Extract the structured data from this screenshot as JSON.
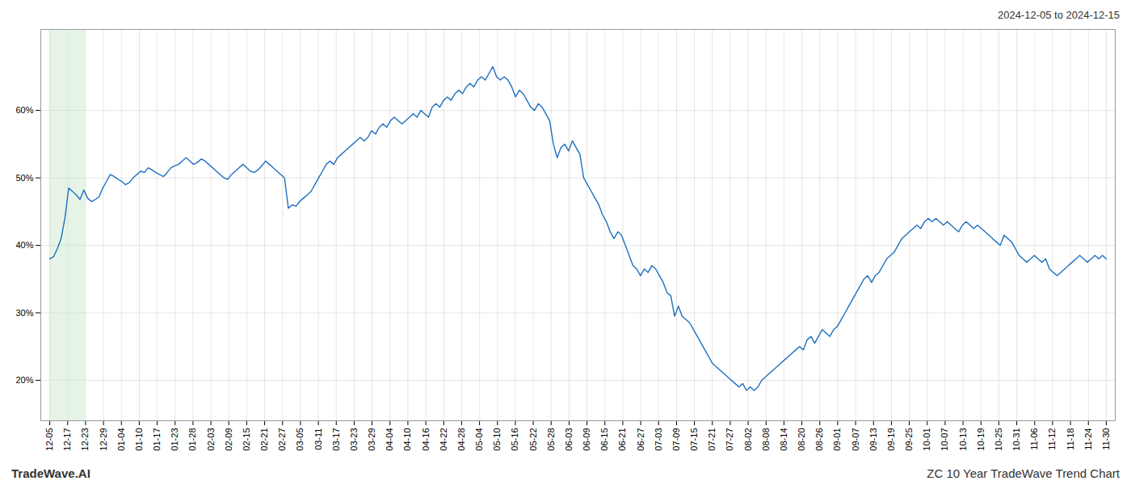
{
  "chart_data": {
    "type": "line",
    "title": "ZC 10 Year TradeWave Trend Chart",
    "subtitle": "2024-12-05 to 2024-12-15",
    "caption": "TradeWave.AI",
    "color": "#1f6fbf",
    "grid": true,
    "highlight": {
      "x": [
        0,
        2
      ],
      "color": "#c8e6c9"
    },
    "xlim": [
      -0.5,
      59.5
    ],
    "xticks": [
      {
        "value": 0,
        "label": "12-05"
      },
      {
        "value": 1,
        "label": "12-17"
      },
      {
        "value": 2,
        "label": "12-23"
      },
      {
        "value": 3,
        "label": "12-29"
      },
      {
        "value": 4,
        "label": "01-04"
      },
      {
        "value": 5,
        "label": "01-10"
      },
      {
        "value": 6,
        "label": "01-17"
      },
      {
        "value": 7,
        "label": "01-23"
      },
      {
        "value": 8,
        "label": "01-28"
      },
      {
        "value": 9,
        "label": "02-03"
      },
      {
        "value": 10,
        "label": "02-09"
      },
      {
        "value": 11,
        "label": "02-15"
      },
      {
        "value": 12,
        "label": "02-21"
      },
      {
        "value": 13,
        "label": "02-27"
      },
      {
        "value": 14,
        "label": "03-05"
      },
      {
        "value": 15,
        "label": "03-11"
      },
      {
        "value": 16,
        "label": "03-17"
      },
      {
        "value": 17,
        "label": "03-23"
      },
      {
        "value": 18,
        "label": "03-29"
      },
      {
        "value": 19,
        "label": "04-04"
      },
      {
        "value": 20,
        "label": "04-10"
      },
      {
        "value": 21,
        "label": "04-16"
      },
      {
        "value": 22,
        "label": "04-22"
      },
      {
        "value": 23,
        "label": "04-28"
      },
      {
        "value": 24,
        "label": "05-04"
      },
      {
        "value": 25,
        "label": "05-10"
      },
      {
        "value": 26,
        "label": "05-16"
      },
      {
        "value": 27,
        "label": "05-22"
      },
      {
        "value": 28,
        "label": "05-28"
      },
      {
        "value": 29,
        "label": "06-03"
      },
      {
        "value": 30,
        "label": "06-09"
      },
      {
        "value": 31,
        "label": "06-15"
      },
      {
        "value": 32,
        "label": "06-21"
      },
      {
        "value": 33,
        "label": "06-27"
      },
      {
        "value": 34,
        "label": "07-03"
      },
      {
        "value": 35,
        "label": "07-09"
      },
      {
        "value": 36,
        "label": "07-15"
      },
      {
        "value": 37,
        "label": "07-21"
      },
      {
        "value": 38,
        "label": "07-27"
      },
      {
        "value": 39,
        "label": "08-02"
      },
      {
        "value": 40,
        "label": "08-08"
      },
      {
        "value": 41,
        "label": "08-14"
      },
      {
        "value": 42,
        "label": "08-20"
      },
      {
        "value": 43,
        "label": "08-26"
      },
      {
        "value": 44,
        "label": "09-01"
      },
      {
        "value": 45,
        "label": "09-07"
      },
      {
        "value": 46,
        "label": "09-13"
      },
      {
        "value": 47,
        "label": "09-19"
      },
      {
        "value": 48,
        "label": "09-25"
      },
      {
        "value": 49,
        "label": "10-01"
      },
      {
        "value": 50,
        "label": "10-07"
      },
      {
        "value": 51,
        "label": "10-13"
      },
      {
        "value": 52,
        "label": "10-19"
      },
      {
        "value": 53,
        "label": "10-25"
      },
      {
        "value": 54,
        "label": "10-31"
      },
      {
        "value": 55,
        "label": "11-06"
      },
      {
        "value": 56,
        "label": "11-12"
      },
      {
        "value": 57,
        "label": "11-18"
      },
      {
        "value": 58,
        "label": "11-24"
      },
      {
        "value": 59,
        "label": "11-30"
      }
    ],
    "ylim": [
      14,
      72
    ],
    "yticks": [
      {
        "value": 20,
        "label": "20%"
      },
      {
        "value": 30,
        "label": "30%"
      },
      {
        "value": 40,
        "label": "40%"
      },
      {
        "value": 50,
        "label": "50%"
      },
      {
        "value": 60,
        "label": "60%"
      }
    ],
    "values": [
      38.0,
      38.3,
      39.5,
      41.0,
      44.0,
      48.5,
      48.0,
      47.5,
      46.8,
      48.2,
      47.0,
      46.5,
      46.8,
      47.2,
      48.5,
      49.5,
      50.5,
      50.2,
      49.8,
      49.5,
      49.0,
      49.3,
      50.0,
      50.5,
      51.0,
      50.8,
      51.5,
      51.2,
      50.8,
      50.5,
      50.2,
      50.8,
      51.5,
      51.8,
      52.0,
      52.5,
      53.0,
      52.5,
      52.0,
      52.3,
      52.8,
      52.5,
      52.0,
      51.5,
      51.0,
      50.5,
      50.0,
      49.8,
      50.5,
      51.0,
      51.5,
      52.0,
      51.5,
      51.0,
      50.8,
      51.2,
      51.8,
      52.5,
      52.0,
      51.5,
      51.0,
      50.5,
      50.0,
      45.5,
      46.0,
      45.8,
      46.5,
      47.0,
      47.5,
      48.0,
      49.0,
      50.0,
      51.0,
      52.0,
      52.5,
      52.0,
      53.0,
      53.5,
      54.0,
      54.5,
      55.0,
      55.5,
      56.0,
      55.5,
      56.0,
      57.0,
      56.5,
      57.5,
      58.0,
      57.5,
      58.5,
      59.0,
      58.5,
      58.0,
      58.5,
      59.0,
      59.5,
      59.0,
      60.0,
      59.5,
      59.0,
      60.5,
      61.0,
      60.5,
      61.5,
      62.0,
      61.5,
      62.5,
      63.0,
      62.5,
      63.5,
      64.0,
      63.5,
      64.5,
      65.0,
      64.5,
      65.5,
      66.5,
      65.0,
      64.5,
      65.0,
      64.5,
      63.5,
      62.0,
      63.0,
      62.5,
      61.5,
      60.5,
      60.0,
      61.0,
      60.5,
      59.5,
      58.5,
      55.0,
      53.0,
      54.5,
      55.0,
      54.0,
      55.5,
      54.5,
      53.5,
      50.0,
      49.0,
      48.0,
      47.0,
      46.0,
      44.5,
      43.5,
      42.0,
      41.0,
      42.0,
      41.5,
      40.0,
      38.5,
      37.0,
      36.5,
      35.5,
      36.5,
      36.0,
      37.0,
      36.5,
      35.5,
      34.5,
      33.0,
      32.5,
      29.5,
      31.0,
      29.5,
      29.0,
      28.5,
      27.5,
      26.5,
      25.5,
      24.5,
      23.5,
      22.5,
      22.0,
      21.5,
      21.0,
      20.5,
      20.0,
      19.5,
      19.0,
      19.5,
      18.5,
      19.0,
      18.5,
      19.0,
      20.0,
      20.5,
      21.0,
      21.5,
      22.0,
      22.5,
      23.0,
      23.5,
      24.0,
      24.5,
      25.0,
      24.5,
      26.0,
      26.5,
      25.5,
      26.5,
      27.5,
      27.0,
      26.5,
      27.5,
      28.0,
      29.0,
      30.0,
      31.0,
      32.0,
      33.0,
      34.0,
      35.0,
      35.5,
      34.5,
      35.5,
      36.0,
      37.0,
      38.0,
      38.5,
      39.0,
      40.0,
      41.0,
      41.5,
      42.0,
      42.5,
      43.0,
      42.5,
      43.5,
      44.0,
      43.5,
      44.0,
      43.5,
      43.0,
      43.5,
      43.0,
      42.5,
      42.0,
      43.0,
      43.5,
      43.0,
      42.5,
      43.0,
      42.5,
      42.0,
      41.5,
      41.0,
      40.5,
      40.0,
      41.5,
      41.0,
      40.5,
      39.5,
      38.5,
      38.0,
      37.5,
      38.0,
      38.5,
      38.0,
      37.5,
      38.0,
      36.5,
      36.0,
      35.5,
      36.0,
      36.5,
      37.0,
      37.5,
      38.0,
      38.5,
      38.0,
      37.5,
      38.0,
      38.5,
      38.0,
      38.5,
      38.0
    ]
  }
}
